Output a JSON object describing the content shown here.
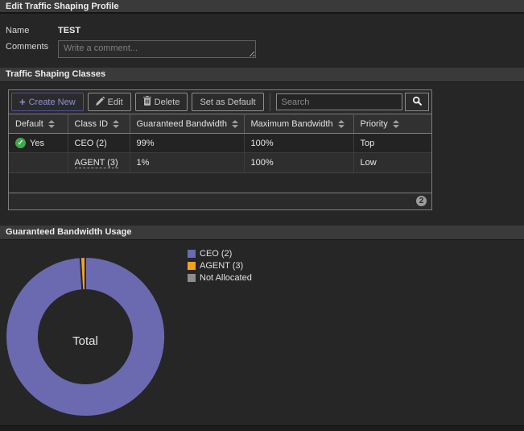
{
  "header": {
    "title": "Edit Traffic Shaping Profile"
  },
  "form": {
    "name_label": "Name",
    "name_value": "TEST",
    "comments_label": "Comments",
    "comments_placeholder": "Write a comment..."
  },
  "classes_section": {
    "title": "Traffic Shaping Classes",
    "toolbar": {
      "create_new": "Create New",
      "edit": "Edit",
      "delete": "Delete",
      "set_as_default": "Set as Default",
      "search_placeholder": "Search"
    },
    "table": {
      "columns": [
        "Default",
        "Class ID",
        "Guaranteed Bandwidth",
        "Maximum Bandwidth",
        "Priority"
      ],
      "rows": [
        {
          "default": "Yes",
          "class_id": "CEO (2)",
          "guaranteed": "99%",
          "maximum": "100%",
          "priority": "Top"
        },
        {
          "default": "",
          "class_id": "AGENT (3)",
          "guaranteed": "1%",
          "maximum": "100%",
          "priority": "Low"
        }
      ],
      "count_badge": "2"
    }
  },
  "usage_section": {
    "title": "Guaranteed Bandwidth Usage"
  },
  "chart_data": {
    "type": "pie",
    "title": "Guaranteed Bandwidth Usage",
    "donut": true,
    "center_label": "Total",
    "labels": [
      "CEO (2)",
      "AGENT (3)",
      "Not Allocated"
    ],
    "values": [
      99,
      1,
      0
    ],
    "colors": [
      "#6b6ab0",
      "#f2a21c",
      "#8d8d8d"
    ],
    "legend_position": "right"
  },
  "colors": {
    "accent": "#8e90dd",
    "status_green": "#3fa94c",
    "background": "#262626"
  }
}
